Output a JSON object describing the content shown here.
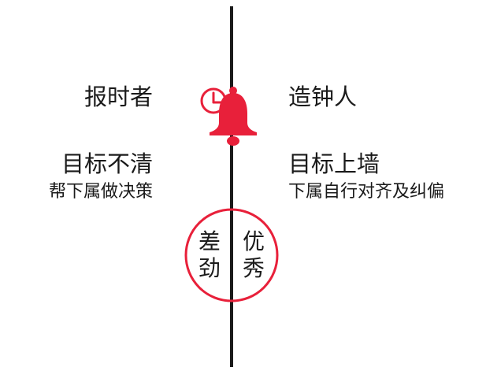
{
  "colors": {
    "accent": "#e8203a",
    "line": "#1a1a1a",
    "text": "#1a1a1a"
  },
  "left": {
    "title": "报时者",
    "heading": "目标不清",
    "sub": "帮下属做决策",
    "rating": "差劲"
  },
  "right": {
    "title": "造钟人",
    "heading": "目标上墙",
    "sub": "下属自行对齐及纠偏",
    "rating": "优秀"
  },
  "icons": {
    "bell": "alarm-bell-icon",
    "clock": "clock-icon"
  }
}
